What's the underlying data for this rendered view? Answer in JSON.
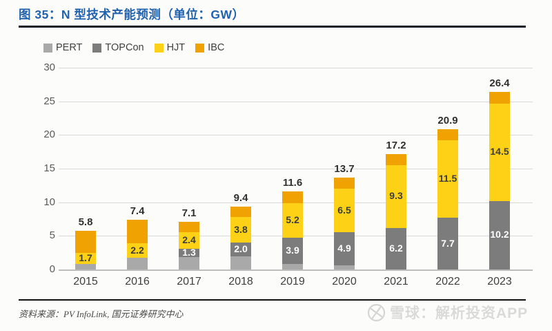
{
  "figure": {
    "title": "图 35：N 型技术产能预测（单位：GW）",
    "source": "资料来源：PV InfoLink, 国元证券研究中心",
    "watermark": "雪球：解析投资APP"
  },
  "chart_data": {
    "type": "bar",
    "stacked": true,
    "title": "N 型技术产能预测（单位：GW）",
    "categories": [
      "2015",
      "2016",
      "2017",
      "2018",
      "2019",
      "2020",
      "2021",
      "2022",
      "2023"
    ],
    "series": [
      {
        "name": "PERT",
        "color": "#a9a9a9",
        "label_color": "#ffffff",
        "show_labels": false,
        "values": [
          0.8,
          1.7,
          1.8,
          2.0,
          0.8,
          0.6,
          0,
          0,
          0
        ]
      },
      {
        "name": "TOPCon",
        "color": "#7c7c7c",
        "label_color": "#ffffff",
        "show_labels": true,
        "values": [
          0,
          0,
          1.3,
          2.0,
          3.9,
          4.9,
          6.2,
          7.7,
          10.2
        ]
      },
      {
        "name": "HJT",
        "color": "#fcd116",
        "label_color": "#3d3d3d",
        "show_labels": true,
        "values": [
          1.7,
          2.2,
          2.4,
          3.8,
          5.2,
          6.5,
          9.3,
          11.5,
          14.5
        ]
      },
      {
        "name": "IBC",
        "color": "#f0a202",
        "label_color": "#3d3d3d",
        "show_labels": false,
        "values": [
          3.3,
          3.5,
          1.6,
          1.6,
          1.7,
          1.7,
          1.7,
          1.7,
          1.7
        ]
      }
    ],
    "totals": [
      5.8,
      7.4,
      7.1,
      9.4,
      11.6,
      13.7,
      17.2,
      20.9,
      26.4
    ],
    "xlabel": "",
    "ylabel": "",
    "ylim": [
      0,
      30
    ],
    "yticks": [
      0,
      5,
      10,
      15,
      20,
      25,
      30
    ],
    "grid": true,
    "legend_position": "top-left"
  }
}
